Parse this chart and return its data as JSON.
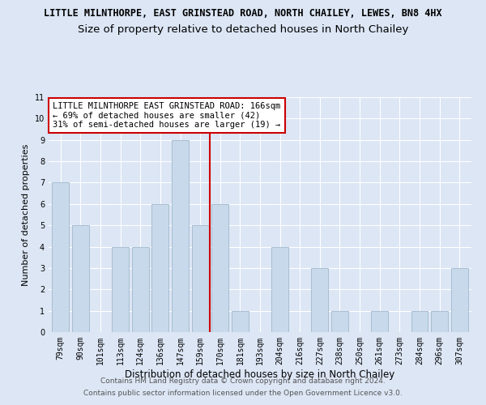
{
  "title": "LITTLE MILNTHORPE, EAST GRINSTEAD ROAD, NORTH CHAILEY, LEWES, BN8 4HX",
  "subtitle": "Size of property relative to detached houses in North Chailey",
  "xlabel": "Distribution of detached houses by size in North Chailey",
  "ylabel": "Number of detached properties",
  "categories": [
    "79sqm",
    "90sqm",
    "101sqm",
    "113sqm",
    "124sqm",
    "136sqm",
    "147sqm",
    "159sqm",
    "170sqm",
    "181sqm",
    "193sqm",
    "204sqm",
    "216sqm",
    "227sqm",
    "238sqm",
    "250sqm",
    "261sqm",
    "273sqm",
    "284sqm",
    "296sqm",
    "307sqm"
  ],
  "values": [
    7,
    5,
    0,
    4,
    4,
    6,
    9,
    5,
    6,
    1,
    0,
    4,
    0,
    3,
    1,
    0,
    1,
    0,
    1,
    1,
    3
  ],
  "bar_color": "#c8d9eb",
  "bar_edge_color": "#a0b8cc",
  "reference_line_index": 7.5,
  "reference_line_color": "#cc0000",
  "annotation_line1": "LITTLE MILNTHORPE EAST GRINSTEAD ROAD: 166sqm",
  "annotation_line2": "← 69% of detached houses are smaller (42)",
  "annotation_line3": "31% of semi-detached houses are larger (19) →",
  "annotation_box_color": "#cc0000",
  "ylim": [
    0,
    11
  ],
  "yticks": [
    0,
    1,
    2,
    3,
    4,
    5,
    6,
    7,
    8,
    9,
    10,
    11
  ],
  "footer1": "Contains HM Land Registry data © Crown copyright and database right 2024.",
  "footer2": "Contains public sector information licensed under the Open Government Licence v3.0.",
  "background_color": "#dce6f5",
  "plot_background_color": "#dce6f5",
  "grid_color": "#ffffff",
  "title_fontsize": 8.5,
  "subtitle_fontsize": 9.5,
  "xlabel_fontsize": 8.5,
  "ylabel_fontsize": 8,
  "tick_fontsize": 7,
  "annotation_fontsize": 7.5,
  "footer_fontsize": 6.5
}
